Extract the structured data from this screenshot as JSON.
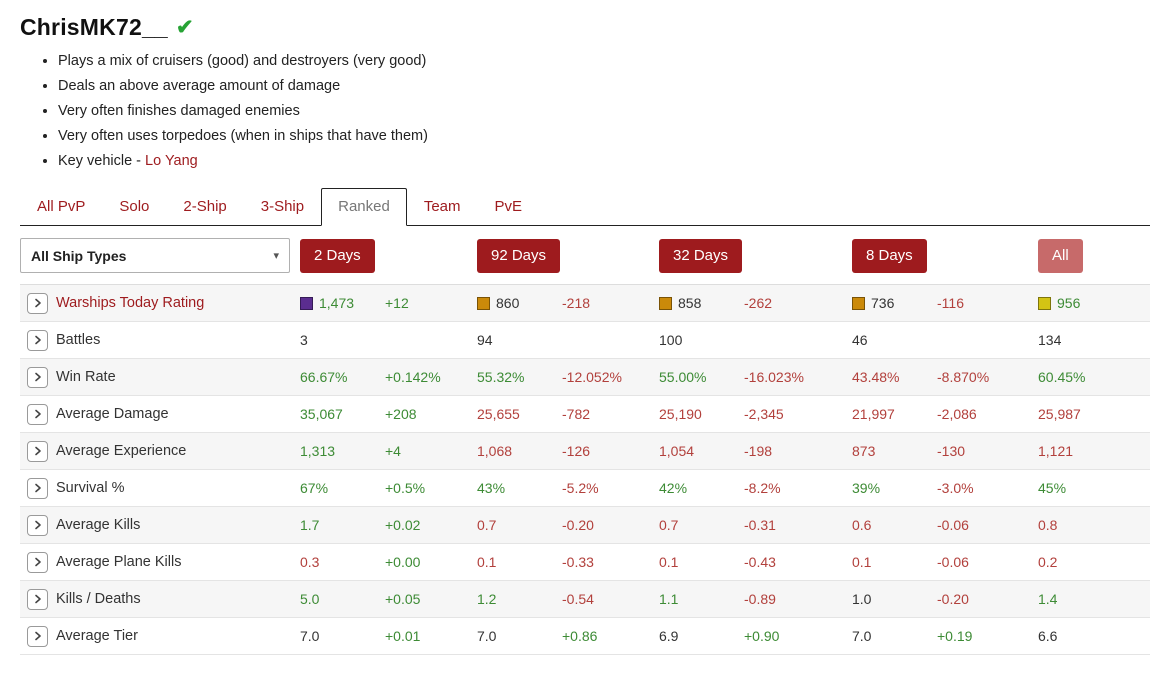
{
  "header": {
    "username": "ChrisMK72__",
    "verified_icon": "check",
    "traits": [
      "Plays a mix of cruisers (good) and destroyers (very good)",
      "Deals an above average amount of damage",
      "Very often finishes damaged enemies",
      "Very often uses torpedoes (when in ships that have them)"
    ],
    "key_vehicle_prefix": "Key vehicle - ",
    "key_vehicle": "Lo Yang"
  },
  "tabs": [
    {
      "label": "All PvP",
      "active": false
    },
    {
      "label": "Solo",
      "active": false
    },
    {
      "label": "2-Ship",
      "active": false
    },
    {
      "label": "3-Ship",
      "active": false
    },
    {
      "label": "Ranked",
      "active": true
    },
    {
      "label": "Team",
      "active": false
    },
    {
      "label": "PvE",
      "active": false
    }
  ],
  "filters": {
    "ship_type_selected": "All Ship Types",
    "period_buttons": [
      {
        "label": "2 Days",
        "variant": "solid"
      },
      {
        "label": "92 Days",
        "variant": "solid"
      },
      {
        "label": "32 Days",
        "variant": "solid"
      },
      {
        "label": "8 Days",
        "variant": "solid"
      },
      {
        "label": "All",
        "variant": "muted"
      }
    ]
  },
  "table": {
    "rows": [
      {
        "label": "Warships Today Rating",
        "label_style": "link",
        "periods": [
          {
            "swatch": "purple",
            "value": "1,473",
            "vc": "green",
            "delta": "+12",
            "dc": "green"
          },
          {
            "swatch": "orange",
            "value": "860",
            "vc": "dark",
            "delta": "-218",
            "dc": "red"
          },
          {
            "swatch": "orange",
            "value": "858",
            "vc": "dark",
            "delta": "-262",
            "dc": "red"
          },
          {
            "swatch": "orange",
            "value": "736",
            "vc": "dark",
            "delta": "-116",
            "dc": "red"
          }
        ],
        "all": {
          "swatch": "yellow",
          "value": "956",
          "vc": "green"
        }
      },
      {
        "label": "Battles",
        "periods": [
          {
            "value": "3",
            "vc": "dark"
          },
          {
            "value": "94",
            "vc": "dark"
          },
          {
            "value": "100",
            "vc": "dark"
          },
          {
            "value": "46",
            "vc": "dark"
          }
        ],
        "all": {
          "value": "134",
          "vc": "dark"
        }
      },
      {
        "label": "Win Rate",
        "periods": [
          {
            "value": "66.67%",
            "vc": "green",
            "delta": "+0.142%",
            "dc": "green"
          },
          {
            "value": "55.32%",
            "vc": "green",
            "delta": "-12.052%",
            "dc": "red"
          },
          {
            "value": "55.00%",
            "vc": "green",
            "delta": "-16.023%",
            "dc": "red"
          },
          {
            "value": "43.48%",
            "vc": "red",
            "delta": "-8.870%",
            "dc": "red"
          }
        ],
        "all": {
          "value": "60.45%",
          "vc": "green"
        }
      },
      {
        "label": "Average Damage",
        "periods": [
          {
            "value": "35,067",
            "vc": "green",
            "delta": "+208",
            "dc": "green"
          },
          {
            "value": "25,655",
            "vc": "red",
            "delta": "-782",
            "dc": "red"
          },
          {
            "value": "25,190",
            "vc": "red",
            "delta": "-2,345",
            "dc": "red"
          },
          {
            "value": "21,997",
            "vc": "red",
            "delta": "-2,086",
            "dc": "red"
          }
        ],
        "all": {
          "value": "25,987",
          "vc": "red"
        }
      },
      {
        "label": "Average Experience",
        "periods": [
          {
            "value": "1,313",
            "vc": "green",
            "delta": "+4",
            "dc": "green"
          },
          {
            "value": "1,068",
            "vc": "red",
            "delta": "-126",
            "dc": "red"
          },
          {
            "value": "1,054",
            "vc": "red",
            "delta": "-198",
            "dc": "red"
          },
          {
            "value": "873",
            "vc": "red",
            "delta": "-130",
            "dc": "red"
          }
        ],
        "all": {
          "value": "1,121",
          "vc": "red"
        }
      },
      {
        "label": "Survival %",
        "periods": [
          {
            "value": "67%",
            "vc": "green",
            "delta": "+0.5%",
            "dc": "green"
          },
          {
            "value": "43%",
            "vc": "green",
            "delta": "-5.2%",
            "dc": "red"
          },
          {
            "value": "42%",
            "vc": "green",
            "delta": "-8.2%",
            "dc": "red"
          },
          {
            "value": "39%",
            "vc": "green",
            "delta": "-3.0%",
            "dc": "red"
          }
        ],
        "all": {
          "value": "45%",
          "vc": "green"
        }
      },
      {
        "label": "Average Kills",
        "periods": [
          {
            "value": "1.7",
            "vc": "green",
            "delta": "+0.02",
            "dc": "green"
          },
          {
            "value": "0.7",
            "vc": "red",
            "delta": "-0.20",
            "dc": "red"
          },
          {
            "value": "0.7",
            "vc": "red",
            "delta": "-0.31",
            "dc": "red"
          },
          {
            "value": "0.6",
            "vc": "red",
            "delta": "-0.06",
            "dc": "red"
          }
        ],
        "all": {
          "value": "0.8",
          "vc": "red"
        }
      },
      {
        "label": "Average Plane Kills",
        "periods": [
          {
            "value": "0.3",
            "vc": "red",
            "delta": "+0.00",
            "dc": "green"
          },
          {
            "value": "0.1",
            "vc": "red",
            "delta": "-0.33",
            "dc": "red"
          },
          {
            "value": "0.1",
            "vc": "red",
            "delta": "-0.43",
            "dc": "red"
          },
          {
            "value": "0.1",
            "vc": "red",
            "delta": "-0.06",
            "dc": "red"
          }
        ],
        "all": {
          "value": "0.2",
          "vc": "red"
        }
      },
      {
        "label": "Kills / Deaths",
        "periods": [
          {
            "value": "5.0",
            "vc": "green",
            "delta": "+0.05",
            "dc": "green"
          },
          {
            "value": "1.2",
            "vc": "green",
            "delta": "-0.54",
            "dc": "red"
          },
          {
            "value": "1.1",
            "vc": "green",
            "delta": "-0.89",
            "dc": "red"
          },
          {
            "value": "1.0",
            "vc": "dark",
            "delta": "-0.20",
            "dc": "red"
          }
        ],
        "all": {
          "value": "1.4",
          "vc": "green"
        }
      },
      {
        "label": "Average Tier",
        "periods": [
          {
            "value": "7.0",
            "vc": "dark",
            "delta": "+0.01",
            "dc": "green"
          },
          {
            "value": "7.0",
            "vc": "dark",
            "delta": "+0.86",
            "dc": "green"
          },
          {
            "value": "6.9",
            "vc": "dark",
            "delta": "+0.90",
            "dc": "green"
          },
          {
            "value": "7.0",
            "vc": "dark",
            "delta": "+0.19",
            "dc": "green"
          }
        ],
        "all": {
          "value": "6.6",
          "vc": "dark"
        }
      }
    ]
  },
  "colors": {
    "accent_red": "#9e1b1e",
    "muted_red_button": "#c76a6a",
    "positive_green": "#3d8b35",
    "negative_red": "#b2403c",
    "dark_text": "#333333",
    "check_green": "#27a335",
    "swatch_purple": "#5b2d90",
    "swatch_orange": "#cb8a0a",
    "swatch_yellow": "#d3c414"
  }
}
